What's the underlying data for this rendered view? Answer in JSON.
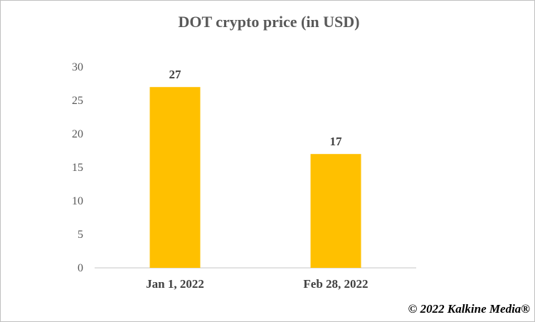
{
  "chart_data": {
    "type": "bar",
    "title": "DOT crypto price (in USD)",
    "categories": [
      "Jan 1, 2022",
      "Feb 28, 2022"
    ],
    "values": [
      27,
      17
    ],
    "data_labels": [
      "27",
      "17"
    ],
    "xlabel": "",
    "ylabel": "",
    "ylim": [
      0,
      30
    ],
    "yticks": [
      0,
      5,
      10,
      15,
      20,
      25,
      30
    ],
    "grid": false,
    "legend": "none",
    "bar_color": "#FFC000",
    "axis_color": "#d9d9d9"
  },
  "watermark": "© 2022 Kalkine Media®"
}
